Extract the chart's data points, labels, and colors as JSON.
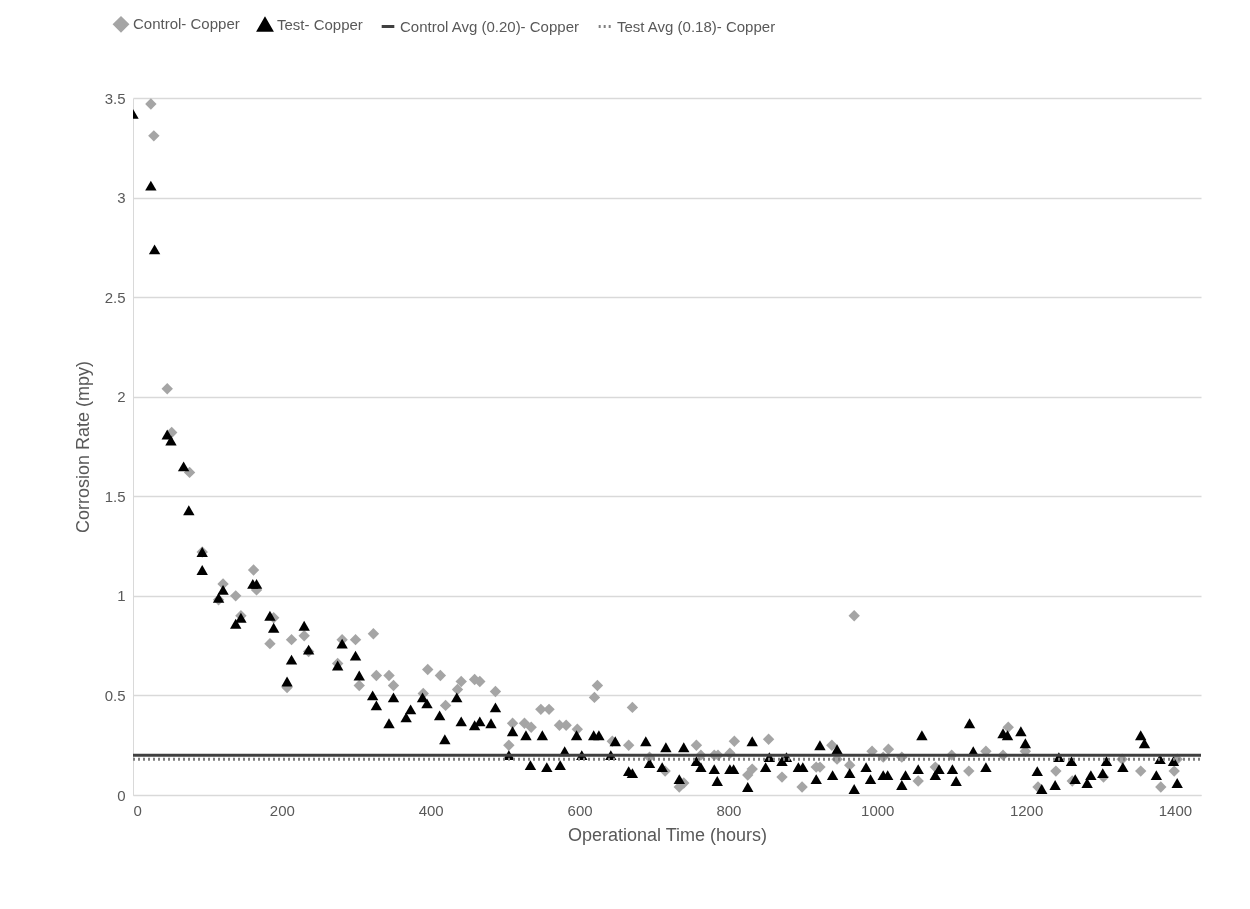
{
  "chart_data": {
    "type": "scatter",
    "xlabel": "Operational Time (hours)",
    "ylabel": "Corrosion Rate (mpy)",
    "xlim": [
      0,
      1435
    ],
    "xticks": [
      0,
      200,
      400,
      600,
      800,
      1000,
      1200,
      1400
    ],
    "ylim": [
      0,
      3.5
    ],
    "yticks": [
      0,
      0.5,
      1,
      1.5,
      2,
      2.5,
      3,
      3.5
    ],
    "grid": "y",
    "legend": "top",
    "series": [
      {
        "name": "Control- Copper",
        "color": "#a5a5a5",
        "marker": "diamond",
        "x": [
          24,
          28,
          46,
          52,
          76,
          93,
          115,
          121,
          138,
          145,
          162,
          166,
          184,
          189,
          207,
          213,
          230,
          236,
          275,
          281,
          299,
          304,
          323,
          327,
          344,
          350,
          390,
          396,
          413,
          420,
          436,
          441,
          459,
          466,
          487,
          505,
          510,
          526,
          535,
          548,
          559,
          573,
          582,
          597,
          620,
          624,
          644,
          666,
          671,
          694,
          715,
          734,
          740,
          757,
          763,
          781,
          786,
          802,
          808,
          826,
          832,
          854,
          872,
          899,
          918,
          923,
          939,
          946,
          963,
          969,
          993,
          1008,
          1015,
          1033,
          1055,
          1078,
          1100,
          1123,
          1146,
          1169,
          1176,
          1199,
          1216,
          1240,
          1262,
          1304,
          1329,
          1354,
          1381,
          1399,
          1403
        ],
        "values": [
          3.47,
          3.31,
          2.04,
          1.82,
          1.62,
          1.22,
          0.98,
          1.06,
          1.0,
          0.9,
          1.13,
          1.03,
          0.76,
          0.89,
          0.54,
          0.78,
          0.8,
          0.72,
          0.66,
          0.78,
          0.78,
          0.55,
          0.81,
          0.6,
          0.6,
          0.55,
          0.51,
          0.63,
          0.6,
          0.45,
          0.53,
          0.57,
          0.58,
          0.57,
          0.52,
          0.25,
          0.36,
          0.36,
          0.34,
          0.43,
          0.43,
          0.35,
          0.35,
          0.33,
          0.49,
          0.55,
          0.27,
          0.25,
          0.44,
          0.19,
          0.12,
          0.04,
          0.06,
          0.25,
          0.2,
          0.2,
          0.2,
          0.21,
          0.27,
          0.1,
          0.13,
          0.28,
          0.09,
          0.04,
          0.14,
          0.14,
          0.25,
          0.18,
          0.15,
          0.9,
          0.22,
          0.19,
          0.23,
          0.19,
          0.07,
          0.14,
          0.2,
          0.12,
          0.22,
          0.2,
          0.34,
          0.22,
          0.04,
          0.12,
          0.07,
          0.09,
          0.18,
          0.12,
          0.04,
          0.12,
          0.18
        ]
      },
      {
        "name": "Test- Copper",
        "color": "#000000",
        "marker": "triangle",
        "x": [
          0,
          24,
          29,
          46,
          51,
          68,
          75,
          93,
          93,
          115,
          121,
          138,
          145,
          161,
          166,
          184,
          189,
          207,
          213,
          230,
          236,
          275,
          281,
          299,
          304,
          322,
          327,
          344,
          350,
          367,
          373,
          389,
          395,
          412,
          419,
          435,
          441,
          459,
          466,
          481,
          487,
          505,
          510,
          528,
          534,
          550,
          556,
          574,
          580,
          596,
          603,
          619,
          626,
          642,
          648,
          666,
          671,
          689,
          694,
          711,
          716,
          734,
          740,
          757,
          763,
          781,
          785,
          802,
          807,
          826,
          832,
          850,
          855,
          872,
          878,
          894,
          900,
          918,
          923,
          940,
          946,
          963,
          969,
          985,
          991,
          1008,
          1014,
          1033,
          1038,
          1055,
          1060,
          1078,
          1083,
          1101,
          1106,
          1124,
          1129,
          1146,
          1169,
          1175,
          1193,
          1199,
          1215,
          1221,
          1239,
          1244,
          1261,
          1266,
          1282,
          1287,
          1303,
          1308,
          1330,
          1354,
          1359,
          1375,
          1380,
          1398,
          1403
        ],
        "values": [
          3.42,
          3.06,
          2.74,
          1.81,
          1.78,
          1.65,
          1.43,
          1.22,
          1.13,
          0.99,
          1.03,
          0.86,
          0.89,
          1.06,
          1.06,
          0.9,
          0.84,
          0.57,
          0.68,
          0.85,
          0.73,
          0.65,
          0.76,
          0.7,
          0.6,
          0.5,
          0.45,
          0.36,
          0.49,
          0.39,
          0.43,
          0.49,
          0.46,
          0.4,
          0.28,
          0.49,
          0.37,
          0.35,
          0.37,
          0.36,
          0.44,
          0.2,
          0.32,
          0.3,
          0.15,
          0.3,
          0.14,
          0.15,
          0.22,
          0.3,
          0.2,
          0.3,
          0.3,
          0.2,
          0.27,
          0.12,
          0.11,
          0.27,
          0.16,
          0.14,
          0.24,
          0.08,
          0.24,
          0.17,
          0.14,
          0.13,
          0.07,
          0.13,
          0.13,
          0.04,
          0.27,
          0.14,
          0.19,
          0.17,
          0.19,
          0.14,
          0.14,
          0.08,
          0.25,
          0.1,
          0.23,
          0.11,
          0.03,
          0.14,
          0.08,
          0.1,
          0.1,
          0.05,
          0.1,
          0.13,
          0.3,
          0.1,
          0.13,
          0.13,
          0.07,
          0.36,
          0.22,
          0.14,
          0.31,
          0.3,
          0.32,
          0.26,
          0.12,
          0.03,
          0.05,
          0.19,
          0.17,
          0.08,
          0.06,
          0.1,
          0.11,
          0.17,
          0.14,
          0.3,
          0.26,
          0.1,
          0.18,
          0.17,
          0.06
        ]
      },
      {
        "name": "Control Avg (0.20)- Copper",
        "type": "line",
        "color": "#404040",
        "line_style": "solid",
        "x": [
          0,
          1435
        ],
        "values": [
          0.2,
          0.2
        ]
      },
      {
        "name": "Test Avg (0.18)- Copper",
        "type": "line",
        "color": "#808080",
        "line_style": "dotted",
        "x": [
          0,
          1435
        ],
        "values": [
          0.18,
          0.18
        ]
      }
    ]
  }
}
